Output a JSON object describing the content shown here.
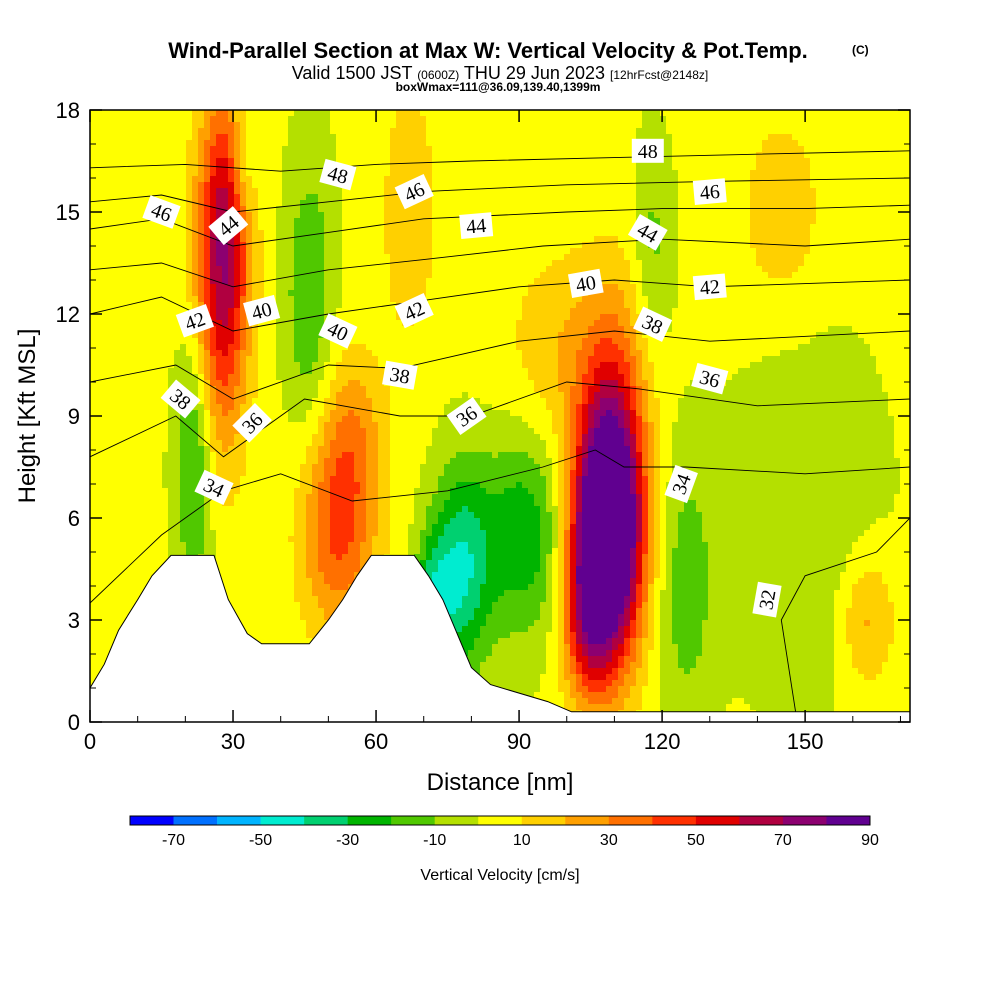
{
  "title": "Wind-Parallel Section at Max W: Vertical Velocity & Pot.Temp.",
  "copyright": "(C)",
  "subtitle": {
    "valid": "Valid 1500 JST",
    "zulu": "(0600Z)",
    "date": "THU 29 Jun 2023",
    "fcst": "[12hrFcst@2148z]",
    "box": "boxWmax=111@36.09,139.40,1399m"
  },
  "colorbar": {
    "label": "Vertical Velocity [cm/s]",
    "tick_labels": [
      "-70",
      "-50",
      "-30",
      "-10",
      "10",
      "30",
      "50",
      "70",
      "90"
    ],
    "bounds": [
      -80,
      -70,
      -60,
      -50,
      -40,
      -30,
      -20,
      -10,
      0,
      10,
      20,
      30,
      40,
      50,
      60,
      70,
      80,
      90
    ],
    "colors": [
      "#0000ff",
      "#0070ff",
      "#00b4ff",
      "#00ecd0",
      "#00d070",
      "#00b400",
      "#50c800",
      "#b4e000",
      "#ffff00",
      "#ffd000",
      "#ffa000",
      "#ff7000",
      "#ff3000",
      "#e00000",
      "#b00040",
      "#8c0070",
      "#600090"
    ]
  },
  "chart_data": {
    "type": "heatmap",
    "title": "Wind-Parallel Section at Max W: Vertical Velocity & Pot.Temp.",
    "xlabel": "Distance [nm]",
    "ylabel": "Height [Kft MSL]",
    "xlim": [
      0,
      172
    ],
    "ylim": [
      0,
      18
    ],
    "x_ticks": [
      "0",
      "30",
      "60",
      "90",
      "120",
      "150"
    ],
    "y_ticks": [
      "0",
      "3",
      "6",
      "9",
      "12",
      "15",
      "18"
    ],
    "shaded_field": "Vertical Velocity [cm/s]",
    "contour_field": "Pot.Temp.",
    "w_features": [
      {
        "x": 108,
        "y": 5.5,
        "w": 95,
        "rx": 7,
        "ry": 3.5
      },
      {
        "x": 110,
        "y": 7.0,
        "w": 50,
        "rx": 7,
        "ry": 5
      },
      {
        "x": 104,
        "y": 3.0,
        "w": 35,
        "rx": 5,
        "ry": 2.5
      },
      {
        "x": 27,
        "y": 12.5,
        "w": 45,
        "rx": 6,
        "ry": 5
      },
      {
        "x": 29,
        "y": 15,
        "w": 35,
        "rx": 5,
        "ry": 4
      },
      {
        "x": 52,
        "y": 5.5,
        "w": 38,
        "rx": 8,
        "ry": 3
      },
      {
        "x": 55,
        "y": 8.5,
        "w": 22,
        "rx": 7,
        "ry": 2.5
      },
      {
        "x": 163,
        "y": 3,
        "w": 22,
        "rx": 6,
        "ry": 2
      },
      {
        "x": 99,
        "y": 11,
        "w": 16,
        "rx": 12,
        "ry": 3
      },
      {
        "x": 67,
        "y": 15,
        "w": 16,
        "rx": 6,
        "ry": 4
      },
      {
        "x": 145,
        "y": 15,
        "w": 15,
        "rx": 9,
        "ry": 3
      },
      {
        "x": 78,
        "y": 4.5,
        "w": -40,
        "rx": 6,
        "ry": 3
      },
      {
        "x": 72,
        "y": 3.5,
        "w": -32,
        "rx": 4,
        "ry": 2
      },
      {
        "x": 91,
        "y": 5.5,
        "w": -30,
        "rx": 9,
        "ry": 3
      },
      {
        "x": 22,
        "y": 8,
        "w": -30,
        "rx": 4,
        "ry": 4
      },
      {
        "x": 46,
        "y": 12.5,
        "w": -22,
        "rx": 5,
        "ry": 4
      },
      {
        "x": 125,
        "y": 4,
        "w": -18,
        "rx": 6,
        "ry": 4
      },
      {
        "x": 150,
        "y": 6,
        "w": -12,
        "rx": 15,
        "ry": 5
      },
      {
        "x": 118,
        "y": 14,
        "w": -15,
        "rx": 4,
        "ry": 3
      },
      {
        "x": 32,
        "y": 16.5,
        "w": -20,
        "rx": 3,
        "ry": 2
      }
    ],
    "w_background": 2,
    "terrain": [
      [
        0,
        1
      ],
      [
        3,
        1.7
      ],
      [
        6,
        2.7
      ],
      [
        10,
        3.6
      ],
      [
        13,
        4.3
      ],
      [
        17,
        4.9
      ],
      [
        26,
        4.9
      ],
      [
        29,
        3.6
      ],
      [
        33,
        2.6
      ],
      [
        36,
        2.3
      ],
      [
        46,
        2.3
      ],
      [
        50,
        3.0
      ],
      [
        53,
        3.6
      ],
      [
        56,
        4.3
      ],
      [
        59,
        4.9
      ],
      [
        68,
        4.9
      ],
      [
        71,
        4.3
      ],
      [
        74,
        3.6
      ],
      [
        77,
        2.6
      ],
      [
        80,
        1.6
      ],
      [
        84,
        1.1
      ],
      [
        96,
        0.6
      ],
      [
        101,
        0.3
      ],
      [
        172,
        0.3
      ]
    ],
    "theta_contours": [
      {
        "label": "32",
        "points": [
          [
            148,
            0.3
          ],
          [
            145,
            3
          ],
          [
            150,
            4.3
          ],
          [
            165,
            5
          ],
          [
            172,
            6
          ]
        ]
      },
      {
        "label": "34",
        "points": [
          [
            0,
            3.5
          ],
          [
            15,
            5.5
          ],
          [
            28,
            6.8
          ],
          [
            40,
            7.3
          ],
          [
            55,
            6.5
          ],
          [
            75,
            6.8
          ],
          [
            95,
            7.5
          ],
          [
            106,
            8
          ],
          [
            112,
            7.5
          ],
          [
            125,
            7.5
          ],
          [
            150,
            7.3
          ],
          [
            172,
            7.5
          ]
        ]
      },
      {
        "label": "36",
        "points": [
          [
            0,
            7.8
          ],
          [
            18,
            9
          ],
          [
            28,
            7.8
          ],
          [
            45,
            9.5
          ],
          [
            65,
            9
          ],
          [
            80,
            9
          ],
          [
            100,
            10
          ],
          [
            115,
            9.8
          ],
          [
            140,
            9.3
          ],
          [
            172,
            9.5
          ]
        ]
      },
      {
        "label": "38",
        "points": [
          [
            0,
            10
          ],
          [
            18,
            10.5
          ],
          [
            30,
            9.5
          ],
          [
            50,
            10.5
          ],
          [
            65,
            10.4
          ],
          [
            90,
            11.2
          ],
          [
            110,
            11.5
          ],
          [
            130,
            11.2
          ],
          [
            172,
            11.5
          ]
        ]
      },
      {
        "label": "40",
        "points": [
          [
            0,
            12
          ],
          [
            15,
            12.5
          ],
          [
            30,
            11.5
          ],
          [
            50,
            12
          ],
          [
            70,
            12.4
          ],
          [
            90,
            12.8
          ],
          [
            110,
            13
          ],
          [
            130,
            12.8
          ],
          [
            172,
            13
          ]
        ]
      },
      {
        "label": "42",
        "points": [
          [
            0,
            13.3
          ],
          [
            15,
            13.5
          ],
          [
            30,
            12.8
          ],
          [
            50,
            13.3
          ],
          [
            70,
            13.6
          ],
          [
            95,
            14
          ],
          [
            120,
            14.2
          ],
          [
            150,
            14
          ],
          [
            172,
            14.2
          ]
        ]
      },
      {
        "label": "44",
        "points": [
          [
            0,
            14.5
          ],
          [
            15,
            14.8
          ],
          [
            30,
            14
          ],
          [
            50,
            14.4
          ],
          [
            70,
            14.8
          ],
          [
            100,
            15
          ],
          [
            120,
            15.1
          ],
          [
            150,
            15.1
          ],
          [
            172,
            15.2
          ]
        ]
      },
      {
        "label": "46",
        "points": [
          [
            0,
            15.3
          ],
          [
            15,
            15.5
          ],
          [
            30,
            15
          ],
          [
            50,
            15.3
          ],
          [
            70,
            15.6
          ],
          [
            100,
            15.8
          ],
          [
            130,
            15.9
          ],
          [
            172,
            16
          ]
        ]
      },
      {
        "label": "48",
        "points": [
          [
            0,
            16.3
          ],
          [
            20,
            16.4
          ],
          [
            40,
            16.2
          ],
          [
            60,
            16.4
          ],
          [
            80,
            16.5
          ],
          [
            110,
            16.6
          ],
          [
            140,
            16.7
          ],
          [
            172,
            16.8
          ]
        ]
      }
    ],
    "contour_labels": [
      {
        "text": "48",
        "x": 52,
        "y": 16.1,
        "rot": 15
      },
      {
        "text": "48",
        "x": 117,
        "y": 16.8,
        "rot": 0
      },
      {
        "text": "46",
        "x": 15,
        "y": 15.0,
        "rot": 20
      },
      {
        "text": "46",
        "x": 68,
        "y": 15.6,
        "rot": -25
      },
      {
        "text": "46",
        "x": 130,
        "y": 15.6,
        "rot": -5
      },
      {
        "text": "44",
        "x": 29,
        "y": 14.6,
        "rot": -40
      },
      {
        "text": "44",
        "x": 81,
        "y": 14.6,
        "rot": -5
      },
      {
        "text": "44",
        "x": 117,
        "y": 14.4,
        "rot": 30
      },
      {
        "text": "42",
        "x": 22,
        "y": 11.8,
        "rot": -20
      },
      {
        "text": "42",
        "x": 68,
        "y": 12.1,
        "rot": -25
      },
      {
        "text": "42",
        "x": 130,
        "y": 12.8,
        "rot": -5
      },
      {
        "text": "40",
        "x": 36,
        "y": 12.1,
        "rot": -15
      },
      {
        "text": "40",
        "x": 52,
        "y": 11.5,
        "rot": 25
      },
      {
        "text": "40",
        "x": 104,
        "y": 12.9,
        "rot": -10
      },
      {
        "text": "38",
        "x": 19,
        "y": 9.5,
        "rot": 40
      },
      {
        "text": "38",
        "x": 65,
        "y": 10.2,
        "rot": 10
      },
      {
        "text": "38",
        "x": 118,
        "y": 11.7,
        "rot": 25
      },
      {
        "text": "36",
        "x": 34,
        "y": 8.8,
        "rot": -45
      },
      {
        "text": "36",
        "x": 79,
        "y": 9.0,
        "rot": -35
      },
      {
        "text": "36",
        "x": 130,
        "y": 10.1,
        "rot": 15
      },
      {
        "text": "34",
        "x": 26,
        "y": 6.9,
        "rot": 25
      },
      {
        "text": "34",
        "x": 124,
        "y": 7.0,
        "rot": -70
      },
      {
        "text": "32",
        "x": 142,
        "y": 3.6,
        "rot": -80
      }
    ]
  }
}
